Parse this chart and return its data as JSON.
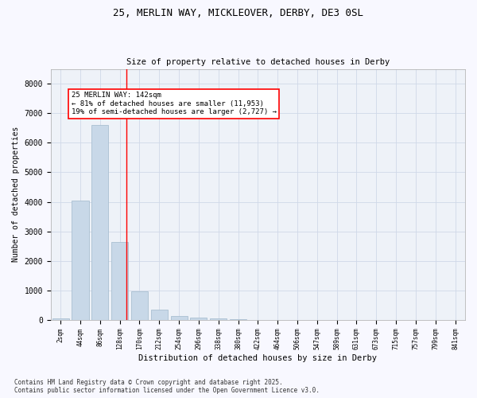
{
  "title_line1": "25, MERLIN WAY, MICKLEOVER, DERBY, DE3 0SL",
  "title_line2": "Size of property relative to detached houses in Derby",
  "xlabel": "Distribution of detached houses by size in Derby",
  "ylabel": "Number of detached properties",
  "bar_labels": [
    "2sqm",
    "44sqm",
    "86sqm",
    "128sqm",
    "170sqm",
    "212sqm",
    "254sqm",
    "296sqm",
    "338sqm",
    "380sqm",
    "422sqm",
    "464sqm",
    "506sqm",
    "547sqm",
    "589sqm",
    "631sqm",
    "673sqm",
    "715sqm",
    "757sqm",
    "799sqm",
    "841sqm"
  ],
  "bar_values": [
    50,
    4030,
    6600,
    2650,
    970,
    360,
    145,
    75,
    50,
    30,
    10,
    5,
    5,
    0,
    0,
    0,
    0,
    0,
    0,
    0,
    0
  ],
  "bar_color": "#c8d8e8",
  "bar_edge_color": "#a0b8cc",
  "red_line_index": 3.33,
  "annotation_text": "25 MERLIN WAY: 142sqm\n← 81% of detached houses are smaller (11,953)\n19% of semi-detached houses are larger (2,727) →",
  "ylim": [
    0,
    8500
  ],
  "yticks": [
    0,
    1000,
    2000,
    3000,
    4000,
    5000,
    6000,
    7000,
    8000
  ],
  "grid_color": "#d0d8e8",
  "bg_color": "#eef2f8",
  "fig_bg": "#f8f8ff",
  "footnote": "Contains HM Land Registry data © Crown copyright and database right 2025.\nContains public sector information licensed under the Open Government Licence v3.0."
}
